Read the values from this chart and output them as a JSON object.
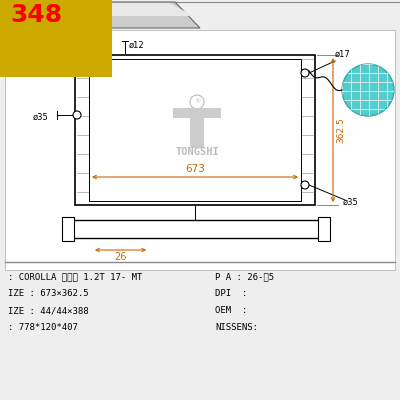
{
  "bg_color": "#eeeeee",
  "title_number": "348",
  "title_bg": "#ccaa00",
  "title_text_color": "#ff0000",
  "dim_color": "#cc6600",
  "teal_color": "#55cccc",
  "tongshi_text": "TONGSHI",
  "dim_673": "673",
  "dim_3625": "362.5",
  "dim_12": "ø12",
  "dim_35_left": "ø35",
  "dim_17": "ø17",
  "dim_35_right": "ø35",
  "dim_26": "26",
  "info_row1_left": ": COROLLA 卡罗拉 1.2T 17- MT",
  "info_row2_left": "IZE : 673×362.5",
  "info_row3_left": "IZE : 44/44×388",
  "info_row4_left": ": 778*120*407",
  "info_row1_right": "P A : 26-扢5",
  "info_row2_right": "DPI  :",
  "info_row3_right": "OEM  :",
  "info_row4_right": "NISSENS:"
}
